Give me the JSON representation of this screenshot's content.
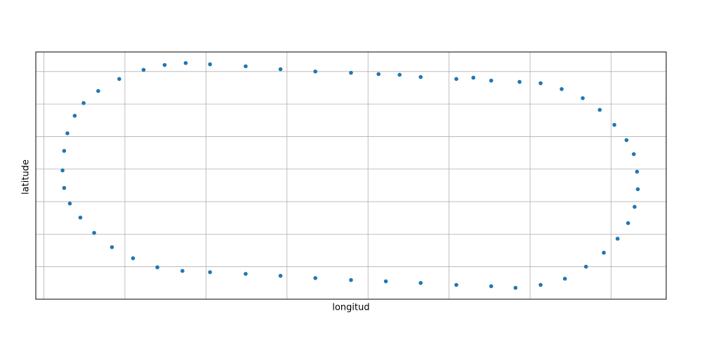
{
  "chart_data": {
    "type": "scatter",
    "xlabel": "longitud",
    "ylabel": "latitude",
    "color": "#1f77b4",
    "grid": true,
    "xlim": [
      -0.1,
      7.68
    ],
    "ylim": [
      -1,
      6.6
    ],
    "xticks": [
      0,
      1,
      2,
      3,
      4,
      5,
      6,
      7
    ],
    "yticks": [
      0,
      1,
      2,
      3,
      4,
      5,
      6
    ],
    "x": [
      0.23,
      0.25,
      0.29,
      0.38,
      0.49,
      0.67,
      0.93,
      1.23,
      1.49,
      1.75,
      2.05,
      2.49,
      2.92,
      3.35,
      3.79,
      4.13,
      4.39,
      4.65,
      5.09,
      5.3,
      5.52,
      5.87,
      6.13,
      6.39,
      6.65,
      6.86,
      7.04,
      7.19,
      7.28,
      7.32,
      7.33,
      7.29,
      7.21,
      7.08,
      6.91,
      6.69,
      6.43,
      6.13,
      5.82,
      5.52,
      5.09,
      4.65,
      4.22,
      3.79,
      3.35,
      2.92,
      2.49,
      2.05,
      1.71,
      1.4,
      1.1,
      0.84,
      0.62,
      0.45,
      0.32,
      0.25
    ],
    "y": [
      2.96,
      3.56,
      4.1,
      4.64,
      5.03,
      5.4,
      5.77,
      6.05,
      6.2,
      6.26,
      6.22,
      6.16,
      6.07,
      6.0,
      5.96,
      5.92,
      5.9,
      5.83,
      5.77,
      5.81,
      5.72,
      5.68,
      5.64,
      5.46,
      5.18,
      4.82,
      4.36,
      3.89,
      3.46,
      2.92,
      2.38,
      1.84,
      1.34,
      0.86,
      0.43,
      0.0,
      -0.37,
      -0.56,
      -0.65,
      -0.6,
      -0.56,
      -0.5,
      -0.45,
      -0.41,
      -0.35,
      -0.28,
      -0.22,
      -0.17,
      -0.13,
      -0.02,
      0.26,
      0.6,
      1.04,
      1.51,
      1.94,
      2.42
    ]
  }
}
